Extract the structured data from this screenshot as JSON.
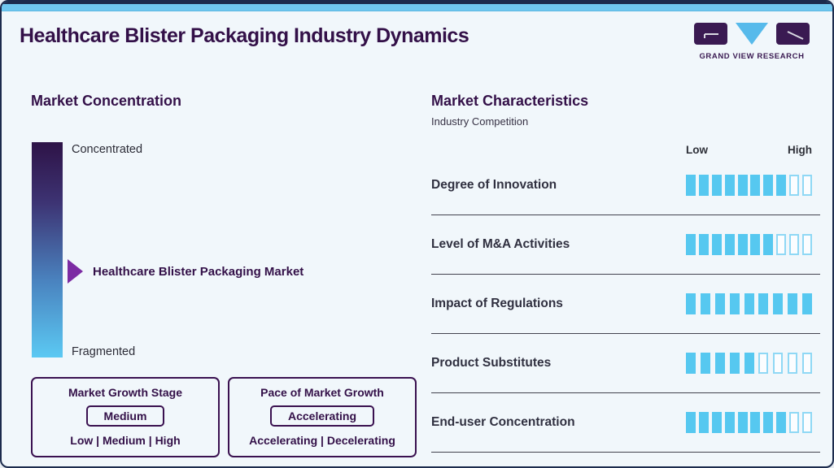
{
  "page": {
    "title": "Healthcare Blister Packaging Industry Dynamics"
  },
  "logo": {
    "text": "GRAND VIEW RESEARCH",
    "marks": [
      "g-block",
      "v-triangle",
      "r-block"
    ]
  },
  "colors": {
    "navy": "#1c2b4d",
    "accent_strip_blue": "#6fc7ef",
    "background": "#f1f7fb",
    "brand_purple": "#331048",
    "logo_purple": "#3a1a52",
    "arrow_purple": "#7c2ba3",
    "segment_fill_blue": "#56c8f0",
    "segment_hollow_border": "#8fd8f5",
    "gradient_top": "#2e1347",
    "gradient_bottom": "#5bc9f3"
  },
  "market_concentration": {
    "heading": "Market Concentration",
    "scale_top": "Concentrated",
    "scale_bottom": "Fragmented",
    "marker_label": "Healthcare Blister Packaging Market",
    "boxes": [
      {
        "title": "Market Growth Stage",
        "value": "Medium",
        "options": "Low | Medium | High"
      },
      {
        "title": "Pace of Market Growth",
        "value": "Accelerating",
        "options": "Accelerating | Decelerating"
      }
    ]
  },
  "market_characteristics": {
    "heading": "Market Characteristics",
    "subheading": "Industry Competition",
    "scale": {
      "low": "Low",
      "high": "High"
    },
    "rows": [
      {
        "label": "Degree of Innovation",
        "filled": 8,
        "total": 10
      },
      {
        "label": "Level of M&A Activities",
        "filled": 7,
        "total": 10
      },
      {
        "label": "Impact of Regulations",
        "filled": 9,
        "total": 9
      },
      {
        "label": "Product Substitutes",
        "filled": 5,
        "total": 9
      },
      {
        "label": "End-user Concentration",
        "filled": 8,
        "total": 10
      }
    ]
  },
  "chart_data": {
    "type": "bar",
    "title": "Market Characteristics — Industry Competition",
    "categories": [
      "Degree of Innovation",
      "Level of M&A Activities",
      "Impact of Regulations",
      "Product Substitutes",
      "End-user Concentration"
    ],
    "values": [
      8,
      7,
      9,
      5,
      8
    ],
    "totals": [
      10,
      10,
      9,
      9,
      10
    ],
    "xlabel": "",
    "ylabel": "",
    "value_scale": [
      "Low",
      "High"
    ],
    "legend_position": "none",
    "grid": false
  }
}
